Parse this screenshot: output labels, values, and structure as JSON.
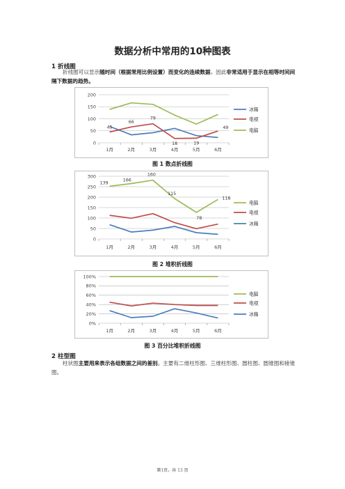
{
  "doc": {
    "title": "数据分析中常用的10种图表",
    "section1_heading": "1 折线图",
    "section1_para_a": "折线图可以显示",
    "section1_para_b": "随时间（根据常用比例设置）而变化的连续数据",
    "section1_para_c": "，因此",
    "section1_para_d": "非常适用于显示在相等时间间隔下数据的趋势。",
    "fig1_caption": "图 1    数点折线图",
    "fig2_caption": "图 2 堆积折线图",
    "fig3_caption": "图 3 百分比堆积折线图",
    "section2_heading": "2 柱型图",
    "section2_para_a": "柱状图",
    "section2_para_b": "主要用来表示各组数据之间的差别",
    "section2_para_c": "。主要有二维柱形图、三维柱形图、圆柱图、圆锥图和棱锥图。",
    "footer": "第1页，共 13 页"
  },
  "chart_data": [
    {
      "type": "line",
      "x": [
        "1月",
        "2月",
        "3月",
        "4月",
        "5月",
        "6月"
      ],
      "ylim": [
        0,
        200
      ],
      "yticks": [
        "0",
        "50",
        "100",
        "150",
        "200"
      ],
      "series": [
        {
          "name": "冰箱",
          "color": "#4a7ebb",
          "values": [
            68,
            33,
            42,
            60,
            30,
            22
          ]
        },
        {
          "name": "电视",
          "color": "#be4b48",
          "values": [
            45,
            66,
            79,
            18,
            19,
            49
          ]
        },
        {
          "name": "电脑",
          "color": "#9bbb59",
          "values": [
            139,
            166,
            160,
            115,
            78,
            118
          ]
        }
      ],
      "data_labels": [
        {
          "series": 1,
          "index": 0,
          "text": "45"
        },
        {
          "series": 1,
          "index": 1,
          "text": "66"
        },
        {
          "series": 1,
          "index": 2,
          "text": "79"
        },
        {
          "series": 1,
          "index": 3,
          "text": "18"
        },
        {
          "series": 1,
          "index": 4,
          "text": "19"
        },
        {
          "series": 1,
          "index": 5,
          "text": "49"
        }
      ],
      "grid": true,
      "legend": "right"
    },
    {
      "type": "line",
      "x": [
        "1月",
        "2月",
        "3月",
        "4月",
        "5月",
        "6月"
      ],
      "ylim": [
        0,
        300
      ],
      "yticks": [
        "0",
        "50",
        "100",
        "150",
        "200",
        "250",
        "300"
      ],
      "series": [
        {
          "name": "电脑",
          "color": "#9bbb59",
          "values": [
            252,
            265,
            281,
            193,
            127,
            189
          ]
        },
        {
          "name": "电视",
          "color": "#be4b48",
          "values": [
            113,
            99,
            121,
            78,
            49,
            71
          ]
        },
        {
          "name": "冰箱",
          "color": "#4a7ebb",
          "values": [
            68,
            33,
            42,
            60,
            30,
            22
          ]
        }
      ],
      "data_labels": [
        {
          "series": 0,
          "index": 0,
          "text": "139"
        },
        {
          "series": 0,
          "index": 1,
          "text": "166"
        },
        {
          "series": 0,
          "index": 2,
          "text": "160"
        },
        {
          "series": 0,
          "index": 3,
          "text": "115"
        },
        {
          "series": 0,
          "index": 4,
          "text": "78"
        },
        {
          "series": 0,
          "index": 5,
          "text": "118"
        }
      ],
      "grid": true,
      "legend": "right"
    },
    {
      "type": "line",
      "x": [
        "1月",
        "2月",
        "3月",
        "4月",
        "5月",
        "6月"
      ],
      "ylim": [
        0,
        100
      ],
      "yticks": [
        "0%",
        "20%",
        "40%",
        "60%",
        "80%",
        "100%"
      ],
      "series": [
        {
          "name": "电脑",
          "color": "#9bbb59",
          "values": [
            100,
            100,
            100,
            100,
            100,
            100
          ]
        },
        {
          "name": "电视",
          "color": "#be4b48",
          "values": [
            45,
            37,
            43,
            40,
            38,
            38
          ]
        },
        {
          "name": "冰箱",
          "color": "#4a7ebb",
          "values": [
            27,
            12,
            15,
            31,
            22,
            11
          ]
        }
      ],
      "data_labels": [],
      "grid": true,
      "legend": "right"
    }
  ]
}
